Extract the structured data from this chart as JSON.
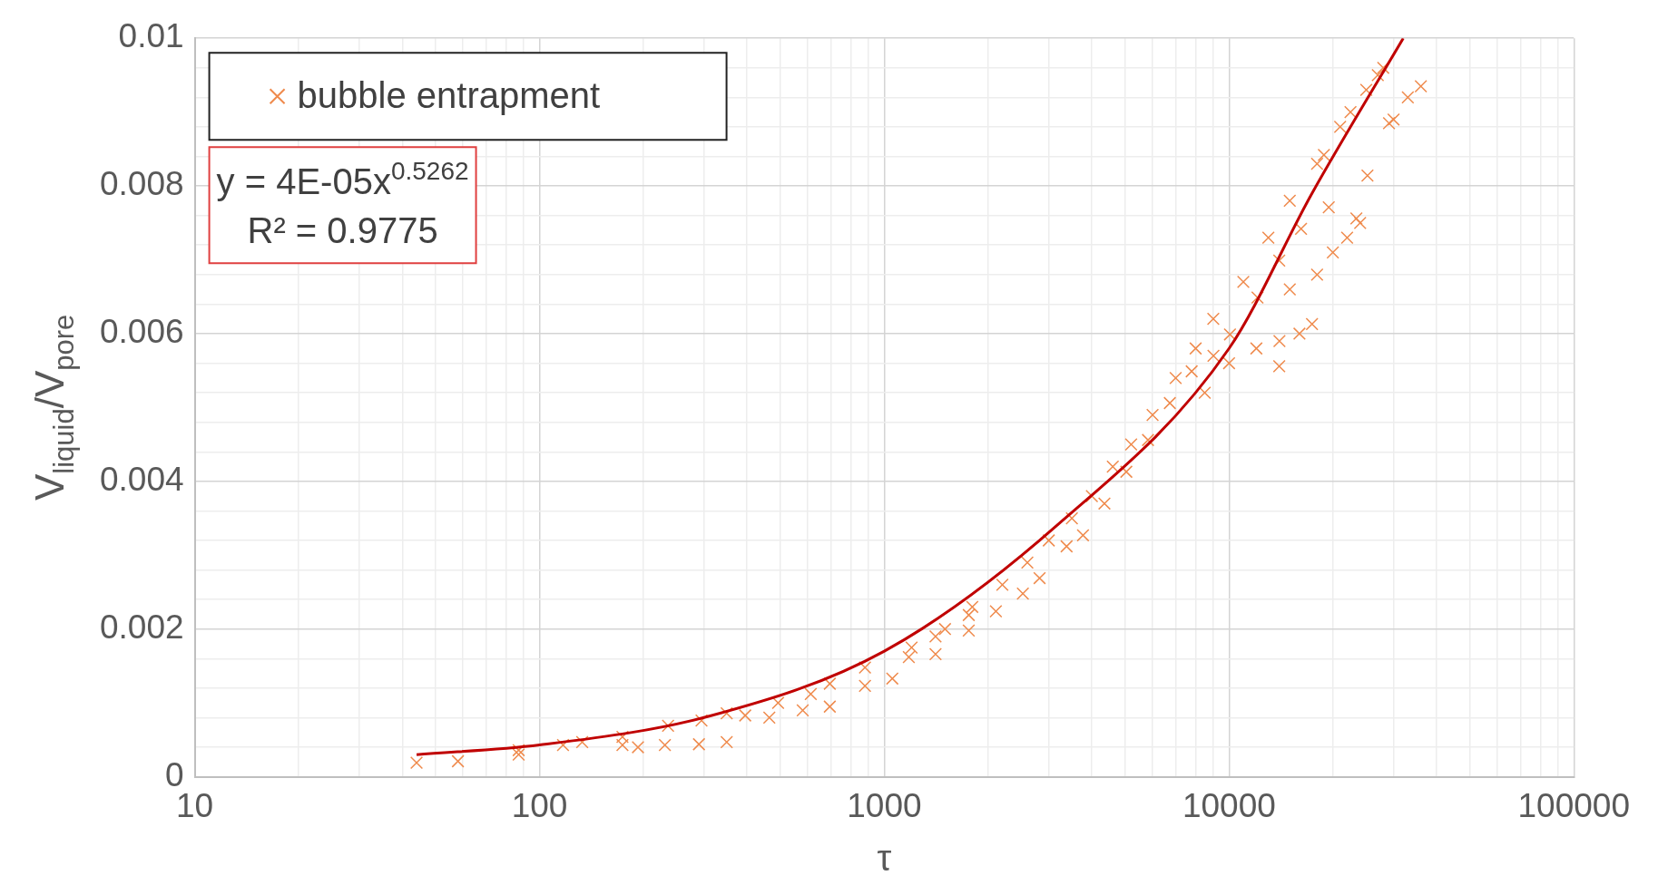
{
  "chart_data": {
    "type": "scatter",
    "xlabel": "τ",
    "ylabel": "V$_{liquid}$/V$_{pore}$",
    "log": "x",
    "grid": true,
    "legend": "top left",
    "marker": "cross",
    "xlim": [
      10,
      100000
    ],
    "xticks": [
      10,
      {
        "value": 20,
        "label": null
      },
      {
        "value": 30,
        "label": null
      },
      {
        "value": 40,
        "label": null
      },
      {
        "value": 50,
        "label": null
      },
      {
        "value": 60,
        "label": null
      },
      {
        "value": 70,
        "label": null
      },
      {
        "value": 80,
        "label": null
      },
      {
        "value": 90,
        "label": null
      },
      100,
      {
        "value": 200,
        "label": null
      },
      {
        "value": 300,
        "label": null
      },
      {
        "value": 400,
        "label": null
      },
      {
        "value": 500,
        "label": null
      },
      {
        "value": 600,
        "label": null
      },
      {
        "value": 700,
        "label": null
      },
      {
        "value": 800,
        "label": null
      },
      {
        "value": 900,
        "label": null
      },
      1000,
      {
        "value": 2000,
        "label": null
      },
      {
        "value": 3000,
        "label": null
      },
      {
        "value": 4000,
        "label": null
      },
      {
        "value": 5000,
        "label": null
      },
      {
        "value": 6000,
        "label": null
      },
      {
        "value": 7000,
        "label": null
      },
      {
        "value": 8000,
        "label": null
      },
      {
        "value": 9000,
        "label": null
      },
      10000,
      {
        "value": 20000,
        "label": null
      },
      {
        "value": 30000,
        "label": null
      },
      {
        "value": 40000,
        "label": null
      },
      {
        "value": 50000,
        "label": null
      },
      {
        "value": 60000,
        "label": null
      },
      {
        "value": 70000,
        "label": null
      },
      {
        "value": 80000,
        "label": null
      },
      {
        "value": 90000,
        "label": null
      },
      100000
    ],
    "ylim": [
      0,
      0.01
    ],
    "yticks": [
      0,
      {
        "value": 0.0004,
        "label": null
      },
      {
        "value": 0.0008,
        "label": null
      },
      {
        "value": 0.0012,
        "label": null
      },
      {
        "value": 0.0016,
        "label": null
      },
      0.002,
      {
        "value": 0.0024,
        "label": null
      },
      {
        "value": 0.0028,
        "label": null
      },
      {
        "value": 0.0032,
        "label": null
      },
      {
        "value": 0.0036,
        "label": null
      },
      0.004,
      {
        "value": 0.0044,
        "label": null
      },
      {
        "value": 0.0048,
        "label": null
      },
      {
        "value": 0.0052,
        "label": null
      },
      {
        "value": 0.0056,
        "label": null
      },
      0.006,
      {
        "value": 0.0064,
        "label": null
      },
      {
        "value": 0.0068,
        "label": null
      },
      {
        "value": 0.0072,
        "label": null
      },
      {
        "value": 0.0076,
        "label": null
      },
      0.008,
      {
        "value": 0.0084,
        "label": null
      },
      {
        "value": 0.0088,
        "label": null
      },
      {
        "value": 0.0092,
        "label": null
      },
      {
        "value": 0.0096,
        "label": null
      },
      0.01
    ],
    "annotations": [
      "y = 4E-05x$^{0.5262}$",
      "R² = 0.9775"
    ],
    "series": [
      {
        "name": "bubble entrapment",
        "color": "#ef8a4c",
        "x": [
          1200,
          1500,
          1800,
          2200,
          2600,
          3000,
          3500,
          4000,
          4600,
          5200,
          6000,
          7000,
          8000,
          9000,
          11000,
          13000,
          15000,
          18000,
          21000,
          25000,
          28000,
          12000,
          14000,
          16000,
          15000,
          18000,
          20000,
          22000,
          24000,
          30000,
          33000,
          8500,
          10000,
          44,
          58,
          87,
          87,
          117,
          133,
          174,
          174,
          193,
          231,
          236,
          290,
          295,
          349,
          349,
          395,
          464,
          492,
          580,
          612,
          695,
          695,
          879,
          879,
          1055,
          1178,
          1408,
          1408,
          1758,
          1758,
          2107,
          2523,
          2821,
          3379,
          3770,
          4350,
          5035,
          5820,
          6733,
          7790,
          9010,
          10060,
          12090,
          13980,
          17400,
          13980,
          16170,
          19460,
          23400,
          18840,
          22500,
          25200,
          29100,
          36000,
          27000
        ],
        "values": [
          0.00175,
          0.002,
          0.0023,
          0.0026,
          0.0029,
          0.0032,
          0.0035,
          0.0038,
          0.0042,
          0.0045,
          0.0049,
          0.0054,
          0.0058,
          0.0062,
          0.0067,
          0.0073,
          0.0078,
          0.0083,
          0.0088,
          0.0093,
          0.0096,
          0.0058,
          0.0059,
          0.006,
          0.0066,
          0.0068,
          0.0071,
          0.0073,
          0.0075,
          0.0089,
          0.0092,
          0.0052,
          0.0056,
          0.00019,
          0.00021,
          0.0003,
          0.00036,
          0.00043,
          0.00047,
          0.00043,
          0.00054,
          0.0004,
          0.00043,
          0.00069,
          0.00044,
          0.00076,
          0.00047,
          0.00086,
          0.00083,
          0.0008,
          0.001,
          0.0009,
          0.00112,
          0.00095,
          0.00126,
          0.00123,
          0.00148,
          0.00133,
          0.00162,
          0.00166,
          0.0019,
          0.00198,
          0.00219,
          0.00224,
          0.00248,
          0.00269,
          0.00312,
          0.00327,
          0.0037,
          0.00413,
          0.00456,
          0.00506,
          0.00549,
          0.0057,
          0.00599,
          0.00649,
          0.00556,
          0.00613,
          0.00699,
          0.00742,
          0.00771,
          0.00756,
          0.00842,
          0.009,
          0.00814,
          0.00885,
          0.00935,
          0.0095
        ]
      },
      {
        "type": "line",
        "marker": "none",
        "color": "#c00000",
        "x": [
          44,
          100,
          316,
          1000,
          3162,
          10000,
          17400,
          32000
        ],
        "values": [
          0.0003,
          0.00043,
          0.00083,
          0.0017,
          0.0034,
          0.0058,
          0.0079,
          0.01
        ]
      }
    ]
  }
}
